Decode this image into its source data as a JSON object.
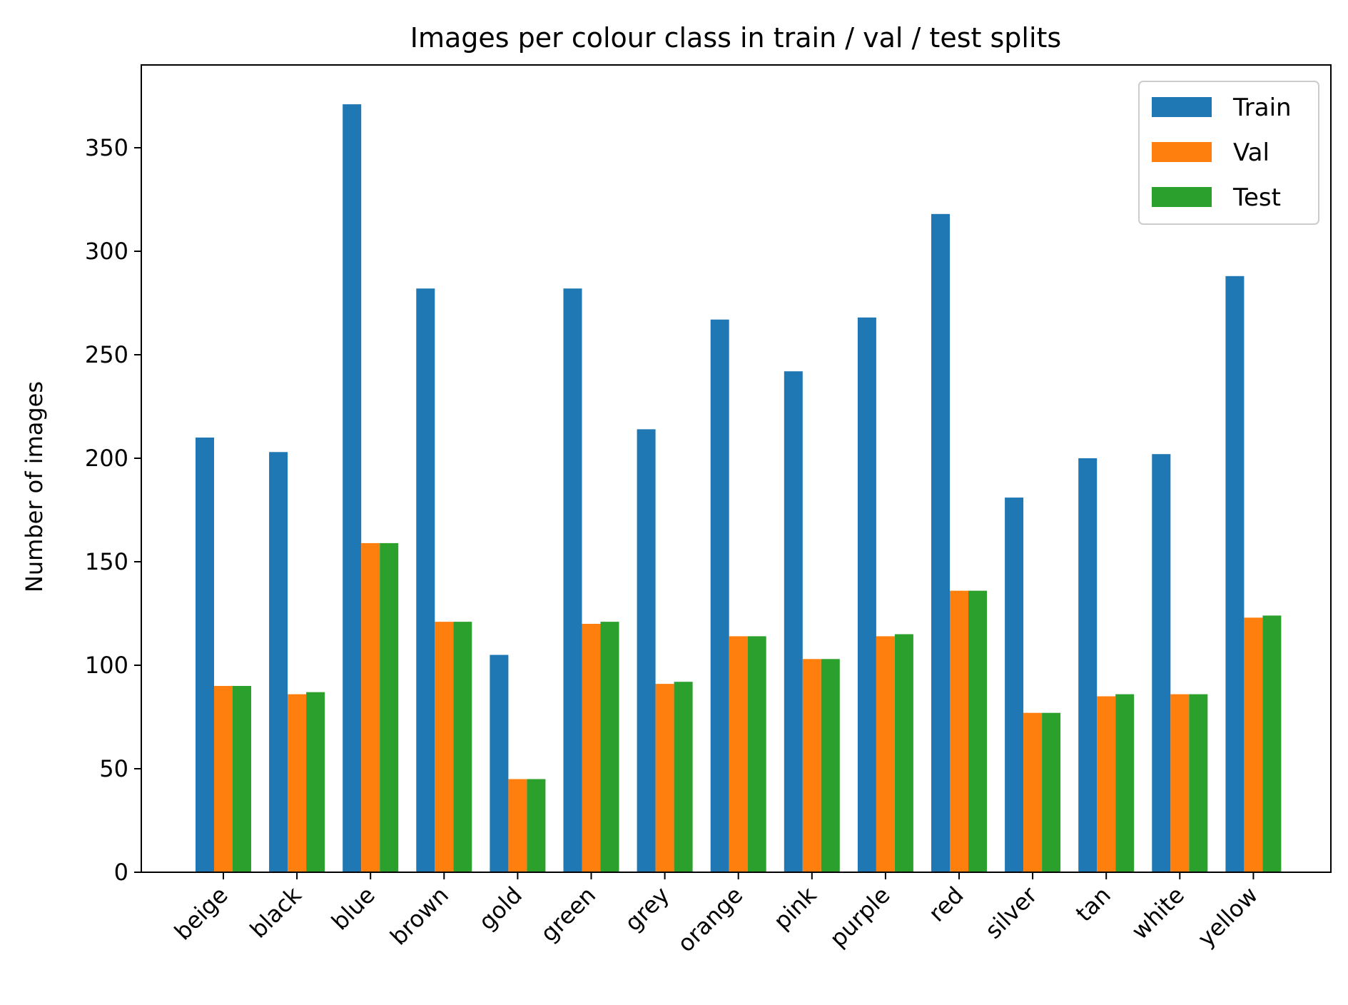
{
  "chart_data": {
    "type": "bar",
    "title": "Images per colour class in train / val / test splits",
    "xlabel": "",
    "ylabel": "Number of images",
    "ylim": [
      0,
      390
    ],
    "yticks": [
      0,
      50,
      100,
      150,
      200,
      250,
      300,
      350
    ],
    "categories": [
      "beige",
      "black",
      "blue",
      "brown",
      "gold",
      "green",
      "grey",
      "orange",
      "pink",
      "purple",
      "red",
      "silver",
      "tan",
      "white",
      "yellow"
    ],
    "series": [
      {
        "name": "Train",
        "color": "#1f77b4",
        "values": [
          210,
          203,
          371,
          282,
          105,
          282,
          214,
          267,
          242,
          268,
          318,
          181,
          200,
          202,
          288
        ]
      },
      {
        "name": "Val",
        "color": "#ff7f0e",
        "values": [
          90,
          86,
          159,
          121,
          45,
          120,
          91,
          114,
          103,
          114,
          136,
          77,
          85,
          86,
          123
        ]
      },
      {
        "name": "Test",
        "color": "#2ca02c",
        "values": [
          90,
          87,
          159,
          121,
          45,
          121,
          92,
          114,
          103,
          115,
          136,
          77,
          86,
          86,
          124
        ]
      }
    ],
    "legend_position": "top-right",
    "grid": false
  }
}
